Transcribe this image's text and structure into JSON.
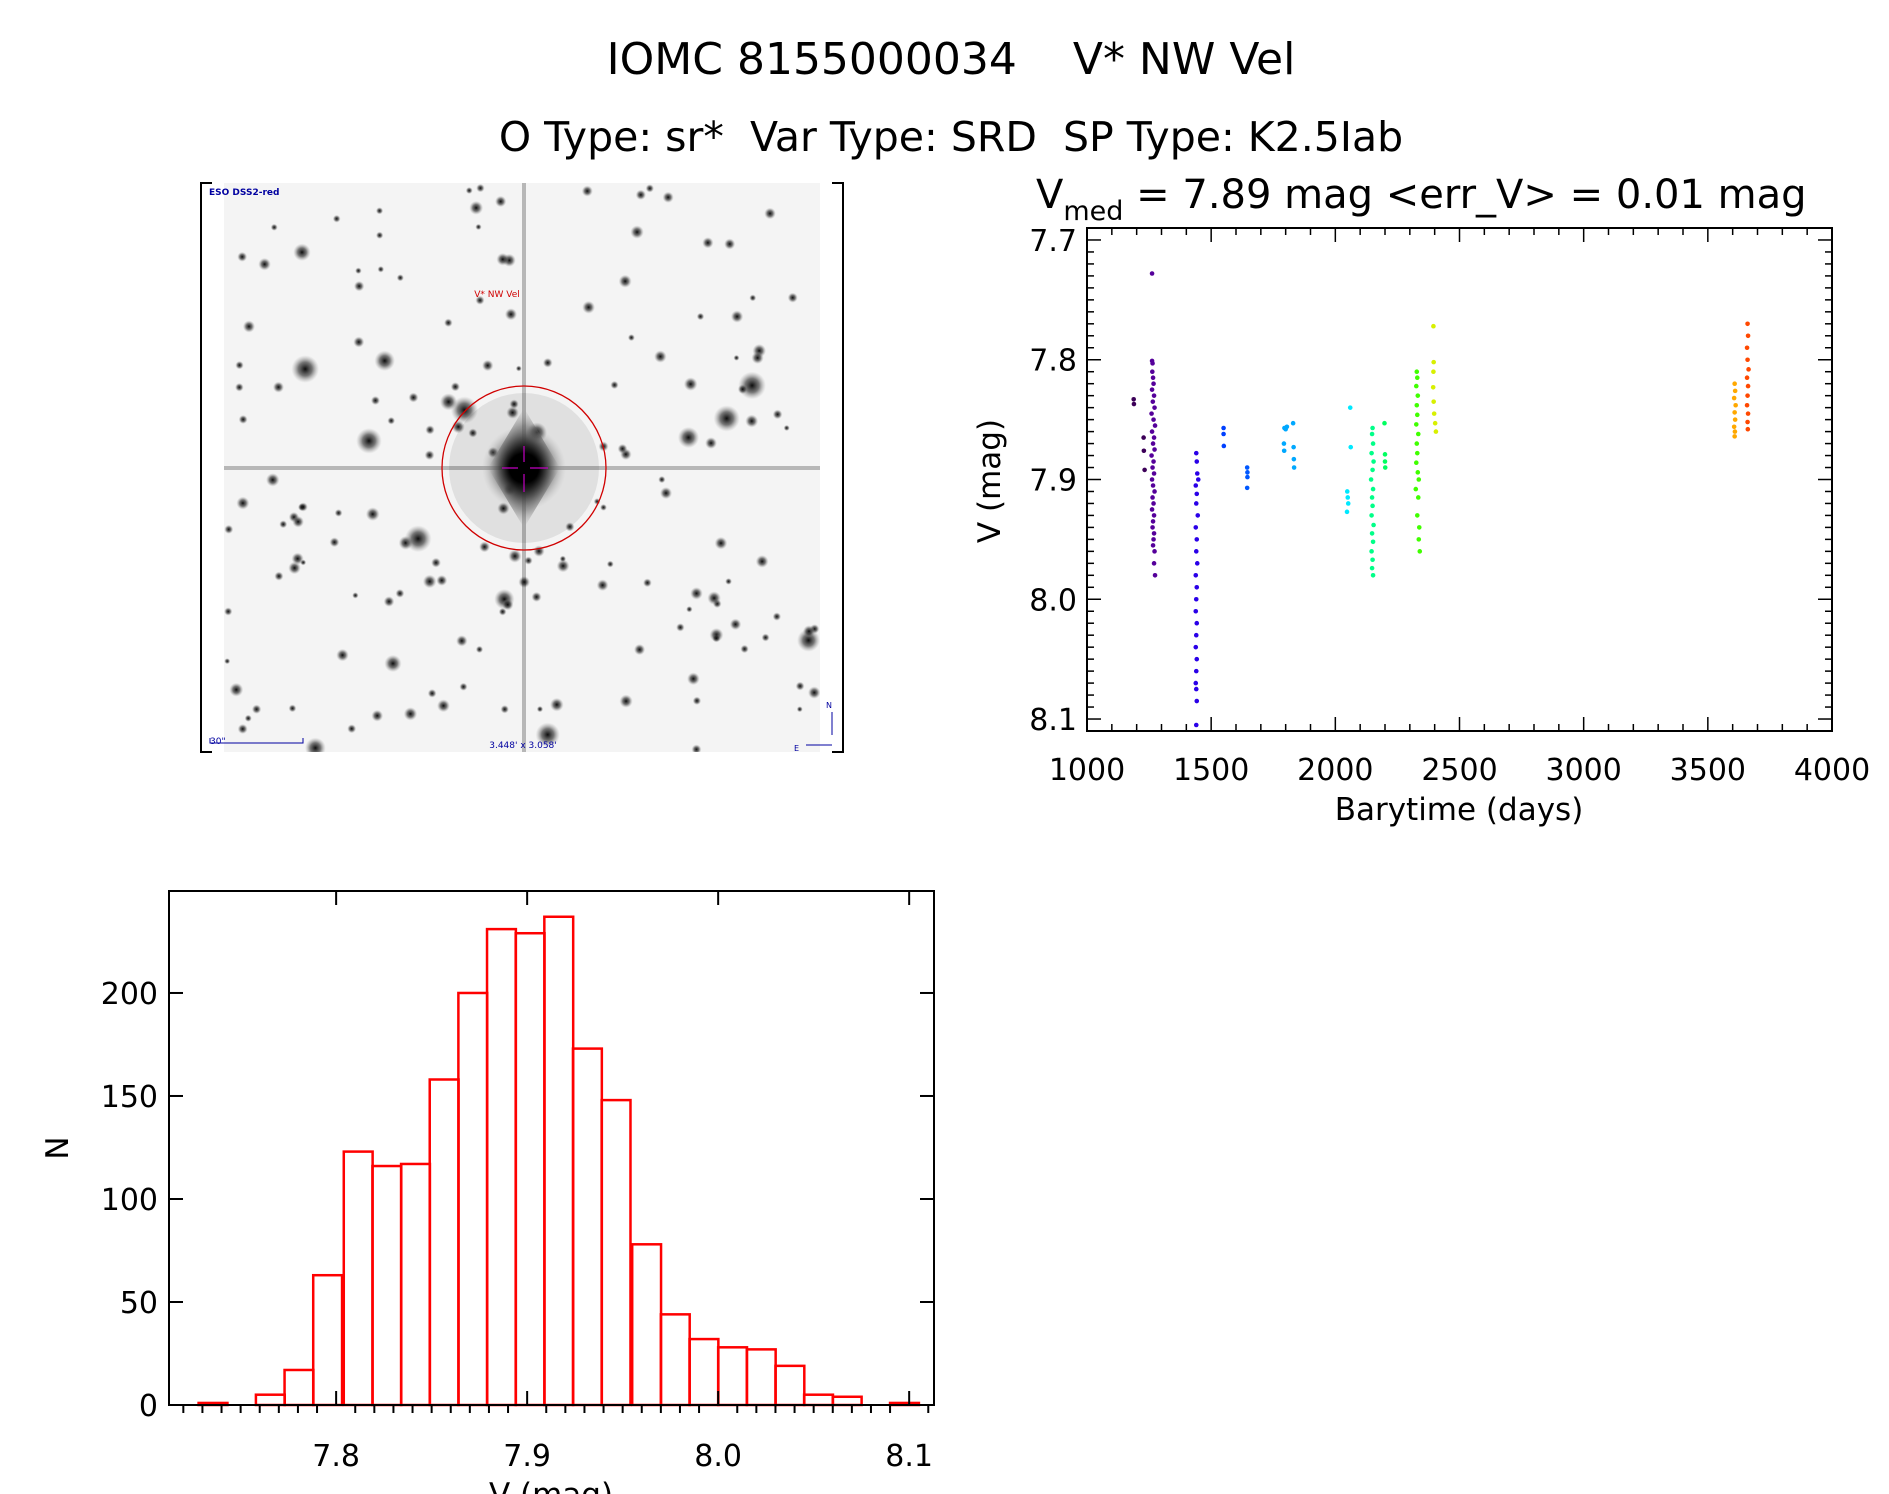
{
  "title": {
    "line1": "IOMC 8155000034    V* NW Vel",
    "line2": "O Type: sr*  Var Type: SRD  SP Type: K2.5Iab"
  },
  "image_panel": {
    "survey_label": "ESO DSS2-red",
    "object_label": "V* NW Vel",
    "scale_label": "30\"",
    "fov_label": "3.448' x 3.058'",
    "north_label": "N",
    "east_label": "E",
    "colors": {
      "label": "#0000a0",
      "object": "#d00000",
      "circle": "#d00000",
      "crosshair": "#c000c0"
    }
  },
  "chart_data": [
    {
      "type": "scatter",
      "title_parts": {
        "v": "V",
        "sub": "med",
        "rest": " = 7.89 mag <err_V> = 0.01 mag"
      },
      "xlabel": "Barytime (days)",
      "ylabel": "V (mag)",
      "xlim": [
        1000,
        4000
      ],
      "ylim": [
        7.69,
        8.11
      ],
      "y_reversed": true,
      "xticks": [
        "1000",
        "1500",
        "2000",
        "2500",
        "3000",
        "3500",
        "4000"
      ],
      "yticks": [
        "7.7",
        "7.8",
        "7.9",
        "8.0",
        "8.1"
      ],
      "series": [
        {
          "color": "#3c0058",
          "points": [
            [
              1188,
              7.833
            ],
            [
              1189,
              7.837
            ],
            [
              1228,
              7.865
            ],
            [
              1229,
              7.876
            ],
            [
              1232,
              7.892
            ]
          ]
        },
        {
          "color": "#55009a",
          "points": [
            [
              1262,
              7.728
            ],
            [
              1262,
              7.801
            ],
            [
              1264,
              7.803
            ],
            [
              1263,
              7.81
            ],
            [
              1266,
              7.815
            ],
            [
              1268,
              7.82
            ],
            [
              1262,
              7.825
            ],
            [
              1270,
              7.83
            ],
            [
              1265,
              7.835
            ],
            [
              1272,
              7.84
            ],
            [
              1260,
              7.845
            ],
            [
              1268,
              7.85
            ],
            [
              1274,
              7.855
            ],
            [
              1262,
              7.86
            ],
            [
              1270,
              7.865
            ],
            [
              1266,
              7.87
            ],
            [
              1272,
              7.875
            ],
            [
              1260,
              7.88
            ],
            [
              1268,
              7.885
            ],
            [
              1264,
              7.89
            ],
            [
              1270,
              7.895
            ],
            [
              1262,
              7.9
            ],
            [
              1266,
              7.905
            ],
            [
              1272,
              7.91
            ],
            [
              1264,
              7.915
            ],
            [
              1268,
              7.92
            ],
            [
              1262,
              7.925
            ],
            [
              1270,
              7.93
            ],
            [
              1266,
              7.935
            ],
            [
              1264,
              7.94
            ],
            [
              1270,
              7.945
            ],
            [
              1268,
              7.95
            ],
            [
              1266,
              7.955
            ],
            [
              1272,
              7.96
            ],
            [
              1270,
              7.97
            ],
            [
              1274,
              7.98
            ]
          ]
        },
        {
          "color": "#2a00e8",
          "points": [
            [
              1440,
              7.878
            ],
            [
              1442,
              7.885
            ],
            [
              1444,
              7.895
            ],
            [
              1448,
              7.9
            ],
            [
              1438,
              7.905
            ],
            [
              1442,
              7.912
            ],
            [
              1440,
              7.92
            ],
            [
              1446,
              7.93
            ],
            [
              1438,
              7.94
            ],
            [
              1442,
              7.95
            ],
            [
              1440,
              7.96
            ],
            [
              1444,
              7.97
            ],
            [
              1438,
              7.98
            ],
            [
              1442,
              7.99
            ],
            [
              1440,
              8.0
            ],
            [
              1438,
              8.01
            ],
            [
              1442,
              8.02
            ],
            [
              1440,
              8.03
            ],
            [
              1438,
              8.04
            ],
            [
              1442,
              8.05
            ],
            [
              1440,
              8.06
            ],
            [
              1438,
              8.07
            ],
            [
              1440,
              8.075
            ],
            [
              1442,
              8.085
            ],
            [
              1440,
              8.105
            ]
          ]
        },
        {
          "color": "#0040ff",
          "points": [
            [
              1550,
              7.857
            ],
            [
              1550,
              7.862
            ],
            [
              1551,
              7.872
            ]
          ]
        },
        {
          "color": "#0058ff",
          "points": [
            [
              1645,
              7.89
            ],
            [
              1646,
              7.894
            ],
            [
              1646,
              7.898
            ],
            [
              1645,
              7.907
            ]
          ]
        },
        {
          "color": "#00a8ff",
          "points": [
            [
              1795,
              7.857
            ],
            [
              1800,
              7.858
            ],
            [
              1805,
              7.856
            ],
            [
              1793,
              7.87
            ],
            [
              1794,
              7.876
            ],
            [
              1830,
              7.853
            ],
            [
              1832,
              7.873
            ],
            [
              1833,
              7.883
            ],
            [
              1834,
              7.89
            ]
          ]
        },
        {
          "color": "#00e8ff",
          "points": [
            [
              2060,
              7.84
            ],
            [
              2048,
              7.91
            ],
            [
              2050,
              7.915
            ],
            [
              2052,
              7.92
            ],
            [
              2047,
              7.927
            ],
            [
              2062,
              7.873
            ]
          ]
        },
        {
          "color": "#00ff88",
          "points": [
            [
              2150,
              7.857
            ],
            [
              2148,
              7.862
            ],
            [
              2152,
              7.87
            ],
            [
              2146,
              7.878
            ],
            [
              2154,
              7.885
            ],
            [
              2150,
              7.892
            ],
            [
              2144,
              7.9
            ],
            [
              2152,
              7.908
            ],
            [
              2148,
              7.915
            ],
            [
              2150,
              7.922
            ],
            [
              2146,
              7.93
            ],
            [
              2154,
              7.938
            ],
            [
              2148,
              7.945
            ],
            [
              2152,
              7.952
            ],
            [
              2146,
              7.96
            ],
            [
              2150,
              7.967
            ],
            [
              2148,
              7.974
            ],
            [
              2152,
              7.98
            ]
          ]
        },
        {
          "color": "#00ff60",
          "points": [
            [
              2198,
              7.853
            ],
            [
              2200,
              7.879
            ],
            [
              2200,
              7.885
            ],
            [
              2201,
              7.89
            ]
          ]
        },
        {
          "color": "#40ff00",
          "points": [
            [
              2328,
              7.81
            ],
            [
              2330,
              7.815
            ],
            [
              2326,
              7.822
            ],
            [
              2332,
              7.83
            ],
            [
              2328,
              7.838
            ],
            [
              2330,
              7.846
            ],
            [
              2326,
              7.854
            ],
            [
              2334,
              7.862
            ],
            [
              2328,
              7.87
            ],
            [
              2330,
              7.878
            ],
            [
              2326,
              7.886
            ],
            [
              2332,
              7.894
            ],
            [
              2336,
              7.9
            ],
            [
              2324,
              7.908
            ],
            [
              2334,
              7.915
            ],
            [
              2330,
              7.93
            ],
            [
              2338,
              7.94
            ],
            [
              2336,
              7.95
            ],
            [
              2340,
              7.96
            ]
          ]
        },
        {
          "color": "#d8f000",
          "points": [
            [
              2395,
              7.772
            ],
            [
              2396,
              7.802
            ],
            [
              2395,
              7.81
            ],
            [
              2394,
              7.823
            ],
            [
              2396,
              7.835
            ],
            [
              2398,
              7.845
            ],
            [
              2402,
              7.853
            ],
            [
              2405,
              7.86
            ]
          ]
        },
        {
          "color": "#ffa800",
          "points": [
            [
              3608,
              7.82
            ],
            [
              3610,
              7.826
            ],
            [
              3606,
              7.832
            ],
            [
              3612,
              7.838
            ],
            [
              3608,
              7.844
            ],
            [
              3610,
              7.85
            ],
            [
              3606,
              7.856
            ],
            [
              3609,
              7.86
            ],
            [
              3608,
              7.864
            ]
          ]
        },
        {
          "color": "#ff4800",
          "points": [
            [
              3660,
              7.77
            ],
            [
              3662,
              7.78
            ],
            [
              3658,
              7.79
            ],
            [
              3660,
              7.8
            ],
            [
              3664,
              7.808
            ],
            [
              3658,
              7.815
            ],
            [
              3662,
              7.822
            ],
            [
              3660,
              7.83
            ],
            [
              3658,
              7.838
            ],
            [
              3662,
              7.845
            ],
            [
              3660,
              7.852
            ],
            [
              3661,
              7.858
            ]
          ]
        }
      ]
    },
    {
      "type": "bar",
      "subtype": "histogram",
      "xlabel": "V (mag)",
      "ylabel": "N",
      "xlim": [
        7.7125,
        8.113
      ],
      "ylim": [
        0,
        249.5
      ],
      "xticks": [
        "7.8",
        "7.9",
        "8.0",
        "8.1"
      ],
      "yticks": [
        "0",
        "50",
        "100",
        "150",
        "200"
      ],
      "bin_width": 0.0151,
      "bin_left_edges": [
        7.728,
        7.743,
        7.758,
        7.773,
        7.788,
        7.804,
        7.819,
        7.834,
        7.849,
        7.864,
        7.879,
        7.894,
        7.909,
        7.924,
        7.939,
        7.955,
        7.97,
        7.985,
        8.0,
        8.015,
        8.03,
        8.045,
        8.06,
        8.075,
        8.09
      ],
      "values": [
        1,
        0,
        5,
        17,
        63,
        123,
        116,
        117,
        158,
        200,
        231,
        229,
        237,
        173,
        148,
        78,
        44,
        32,
        28,
        27,
        19,
        5,
        4,
        0,
        1
      ],
      "bar_color": "#ff0000"
    }
  ]
}
